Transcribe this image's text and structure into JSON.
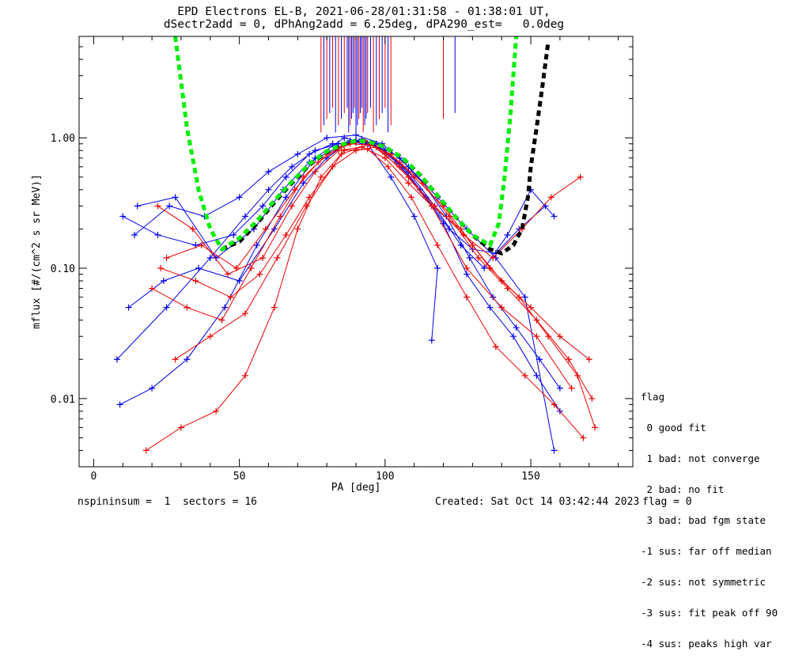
{
  "title_line1": "EPD Electrons EL-B, 2021-06-28/01:31:58 - 01:38:01 UT,",
  "title_line2": "dSectr2add = 0, dPhAng2add = 6.25deg, dPA290_est=   0.0deg",
  "footer": {
    "left": "nspininsum =  1  sectors = 16",
    "created": "Created: Sat Oct 14 03:42:44 2023",
    "flag": "flag = 0"
  },
  "legend": {
    "title": "flag",
    "items": [
      " 0 good fit",
      " 1 bad: not converge",
      " 2 bad: no fit",
      " 3 bad: bad fgm state",
      "-1 sus: far off median",
      "-2 sus: not symmetric",
      "-3 sus: fit peak off 90",
      "-4 sus: peaks high var"
    ]
  },
  "colors": {
    "red": "#ee0000",
    "blue": "#0000ee",
    "green": "#00ee00",
    "black": "#000000"
  },
  "chart_data": {
    "type": "line",
    "xlabel": "PA [deg]",
    "ylabel": "mflux [#/(cm^2 s sr MeV)]",
    "xlim": [
      -5,
      185
    ],
    "ylim": [
      0.003,
      6
    ],
    "yscale": "log",
    "xticks": [
      0,
      50,
      100,
      150
    ],
    "yticks": [
      {
        "value": 0.01,
        "label": "0.01"
      },
      {
        "value": 0.1,
        "label": "0.10"
      },
      {
        "value": 1.0,
        "label": "1.00"
      }
    ],
    "series": [
      {
        "color": "blue",
        "x": [
          8,
          25,
          40,
          52,
          60,
          68,
          76,
          84,
          90,
          97,
          105,
          113,
          121,
          129,
          137,
          145,
          153,
          160
        ],
        "y": [
          0.02,
          0.05,
          0.12,
          0.25,
          0.4,
          0.6,
          0.8,
          0.9,
          0.95,
          0.9,
          0.7,
          0.45,
          0.25,
          0.12,
          0.06,
          0.035,
          0.02,
          0.012
        ]
      },
      {
        "color": "blue",
        "x": [
          10,
          22,
          35,
          48,
          58,
          66,
          74,
          82,
          90,
          98,
          106,
          114,
          122,
          130,
          138,
          146,
          155
        ],
        "y": [
          0.25,
          0.18,
          0.15,
          0.18,
          0.3,
          0.5,
          0.75,
          0.9,
          0.92,
          0.85,
          0.6,
          0.35,
          0.2,
          0.14,
          0.13,
          0.2,
          0.3
        ]
      },
      {
        "color": "blue",
        "x": [
          12,
          24,
          36,
          50,
          62,
          72,
          80,
          88,
          96,
          104,
          112,
          120,
          128,
          136,
          144,
          152,
          160
        ],
        "y": [
          0.05,
          0.08,
          0.1,
          0.08,
          0.2,
          0.45,
          0.7,
          0.95,
          0.9,
          0.65,
          0.4,
          0.22,
          0.09,
          0.05,
          0.03,
          0.015,
          0.008
        ]
      },
      {
        "color": "blue",
        "x": [
          15,
          28,
          42,
          55,
          65,
          74,
          84,
          92,
          100,
          108,
          117,
          126,
          134,
          142,
          150,
          158
        ],
        "y": [
          0.3,
          0.35,
          0.12,
          0.2,
          0.4,
          0.65,
          0.85,
          0.98,
          0.8,
          0.55,
          0.3,
          0.15,
          0.1,
          0.18,
          0.4,
          0.25
        ]
      },
      {
        "color": "blue",
        "x": [
          9,
          20,
          32,
          45,
          56,
          66,
          76,
          86,
          94,
          102,
          110,
          118,
          116
        ],
        "y": [
          0.009,
          0.012,
          0.02,
          0.05,
          0.15,
          0.35,
          0.7,
          1.0,
          0.9,
          0.5,
          0.25,
          0.1,
          0.028
        ]
      },
      {
        "color": "blue",
        "x": [
          14,
          26,
          38,
          50,
          60,
          70,
          80,
          90,
          99,
          108,
          118,
          128,
          138,
          148,
          158
        ],
        "y": [
          0.18,
          0.3,
          0.25,
          0.35,
          0.55,
          0.75,
          1.0,
          1.05,
          0.9,
          0.6,
          0.35,
          0.2,
          0.12,
          0.06,
          0.004
        ]
      },
      {
        "color": "red",
        "x": [
          20,
          32,
          44,
          54,
          64,
          72,
          80,
          88,
          95,
          102,
          110,
          120,
          130,
          140,
          150,
          160,
          170
        ],
        "y": [
          0.07,
          0.05,
          0.04,
          0.1,
          0.25,
          0.5,
          0.75,
          0.9,
          0.88,
          0.75,
          0.5,
          0.3,
          0.15,
          0.08,
          0.05,
          0.03,
          0.02
        ]
      },
      {
        "color": "red",
        "x": [
          22,
          34,
          46,
          58,
          68,
          76,
          84,
          92,
          100,
          108,
          116,
          126,
          136,
          146,
          156,
          166,
          172
        ],
        "y": [
          0.3,
          0.2,
          0.09,
          0.12,
          0.3,
          0.55,
          0.8,
          0.85,
          0.7,
          0.45,
          0.3,
          0.2,
          0.1,
          0.06,
          0.03,
          0.015,
          0.006
        ]
      },
      {
        "color": "red",
        "x": [
          18,
          30,
          42,
          52,
          62,
          70,
          78,
          86,
          94,
          101,
          109,
          118,
          128,
          138,
          148,
          158,
          168
        ],
        "y": [
          0.004,
          0.006,
          0.008,
          0.015,
          0.05,
          0.2,
          0.5,
          0.8,
          0.82,
          0.6,
          0.35,
          0.15,
          0.06,
          0.025,
          0.015,
          0.009,
          0.005
        ]
      },
      {
        "color": "red",
        "x": [
          25,
          37,
          49,
          59,
          69,
          77,
          85,
          93,
          100,
          108,
          117,
          127,
          137,
          147,
          157,
          167
        ],
        "y": [
          0.12,
          0.15,
          0.1,
          0.2,
          0.4,
          0.65,
          0.85,
          0.95,
          0.75,
          0.5,
          0.3,
          0.18,
          0.12,
          0.2,
          0.35,
          0.5
        ]
      },
      {
        "color": "red",
        "x": [
          28,
          40,
          52,
          63,
          73,
          85,
          95,
          105,
          116,
          128,
          140,
          152,
          164
        ],
        "y": [
          0.02,
          0.03,
          0.045,
          0.12,
          0.3,
          0.75,
          0.9,
          0.6,
          0.3,
          0.1,
          0.05,
          0.03,
          0.012
        ]
      },
      {
        "color": "red",
        "x": [
          23,
          35,
          47,
          57,
          66,
          74,
          82,
          90,
          97,
          105,
          113,
          122,
          132,
          142,
          152,
          163,
          171
        ],
        "y": [
          0.1,
          0.08,
          0.06,
          0.09,
          0.18,
          0.35,
          0.6,
          0.8,
          0.85,
          0.65,
          0.45,
          0.25,
          0.12,
          0.07,
          0.04,
          0.02,
          0.01
        ]
      }
    ],
    "fits": [
      {
        "color": "black",
        "x": [
          44,
          50,
          56,
          62,
          68,
          74,
          80,
          86,
          90,
          94,
          100,
          106,
          112,
          118,
          124,
          130,
          136,
          140,
          144,
          147,
          149,
          150,
          152,
          154,
          156
        ],
        "y": [
          0.14,
          0.16,
          0.22,
          0.32,
          0.45,
          0.62,
          0.78,
          0.9,
          0.95,
          0.94,
          0.85,
          0.7,
          0.52,
          0.36,
          0.25,
          0.18,
          0.14,
          0.13,
          0.15,
          0.2,
          0.35,
          0.6,
          1.2,
          2.5,
          5.5
        ]
      },
      {
        "color": "green",
        "x": [
          28,
          32,
          36,
          40,
          44,
          50,
          56,
          62,
          68,
          74,
          80,
          86,
          90,
          94,
          100,
          106,
          112,
          118,
          124,
          130,
          136,
          139,
          141,
          143,
          145
        ],
        "y": [
          6,
          1.2,
          0.4,
          0.2,
          0.14,
          0.17,
          0.23,
          0.33,
          0.46,
          0.63,
          0.79,
          0.9,
          0.95,
          0.94,
          0.85,
          0.7,
          0.52,
          0.36,
          0.25,
          0.18,
          0.15,
          0.22,
          0.5,
          1.5,
          6
        ]
      }
    ]
  }
}
